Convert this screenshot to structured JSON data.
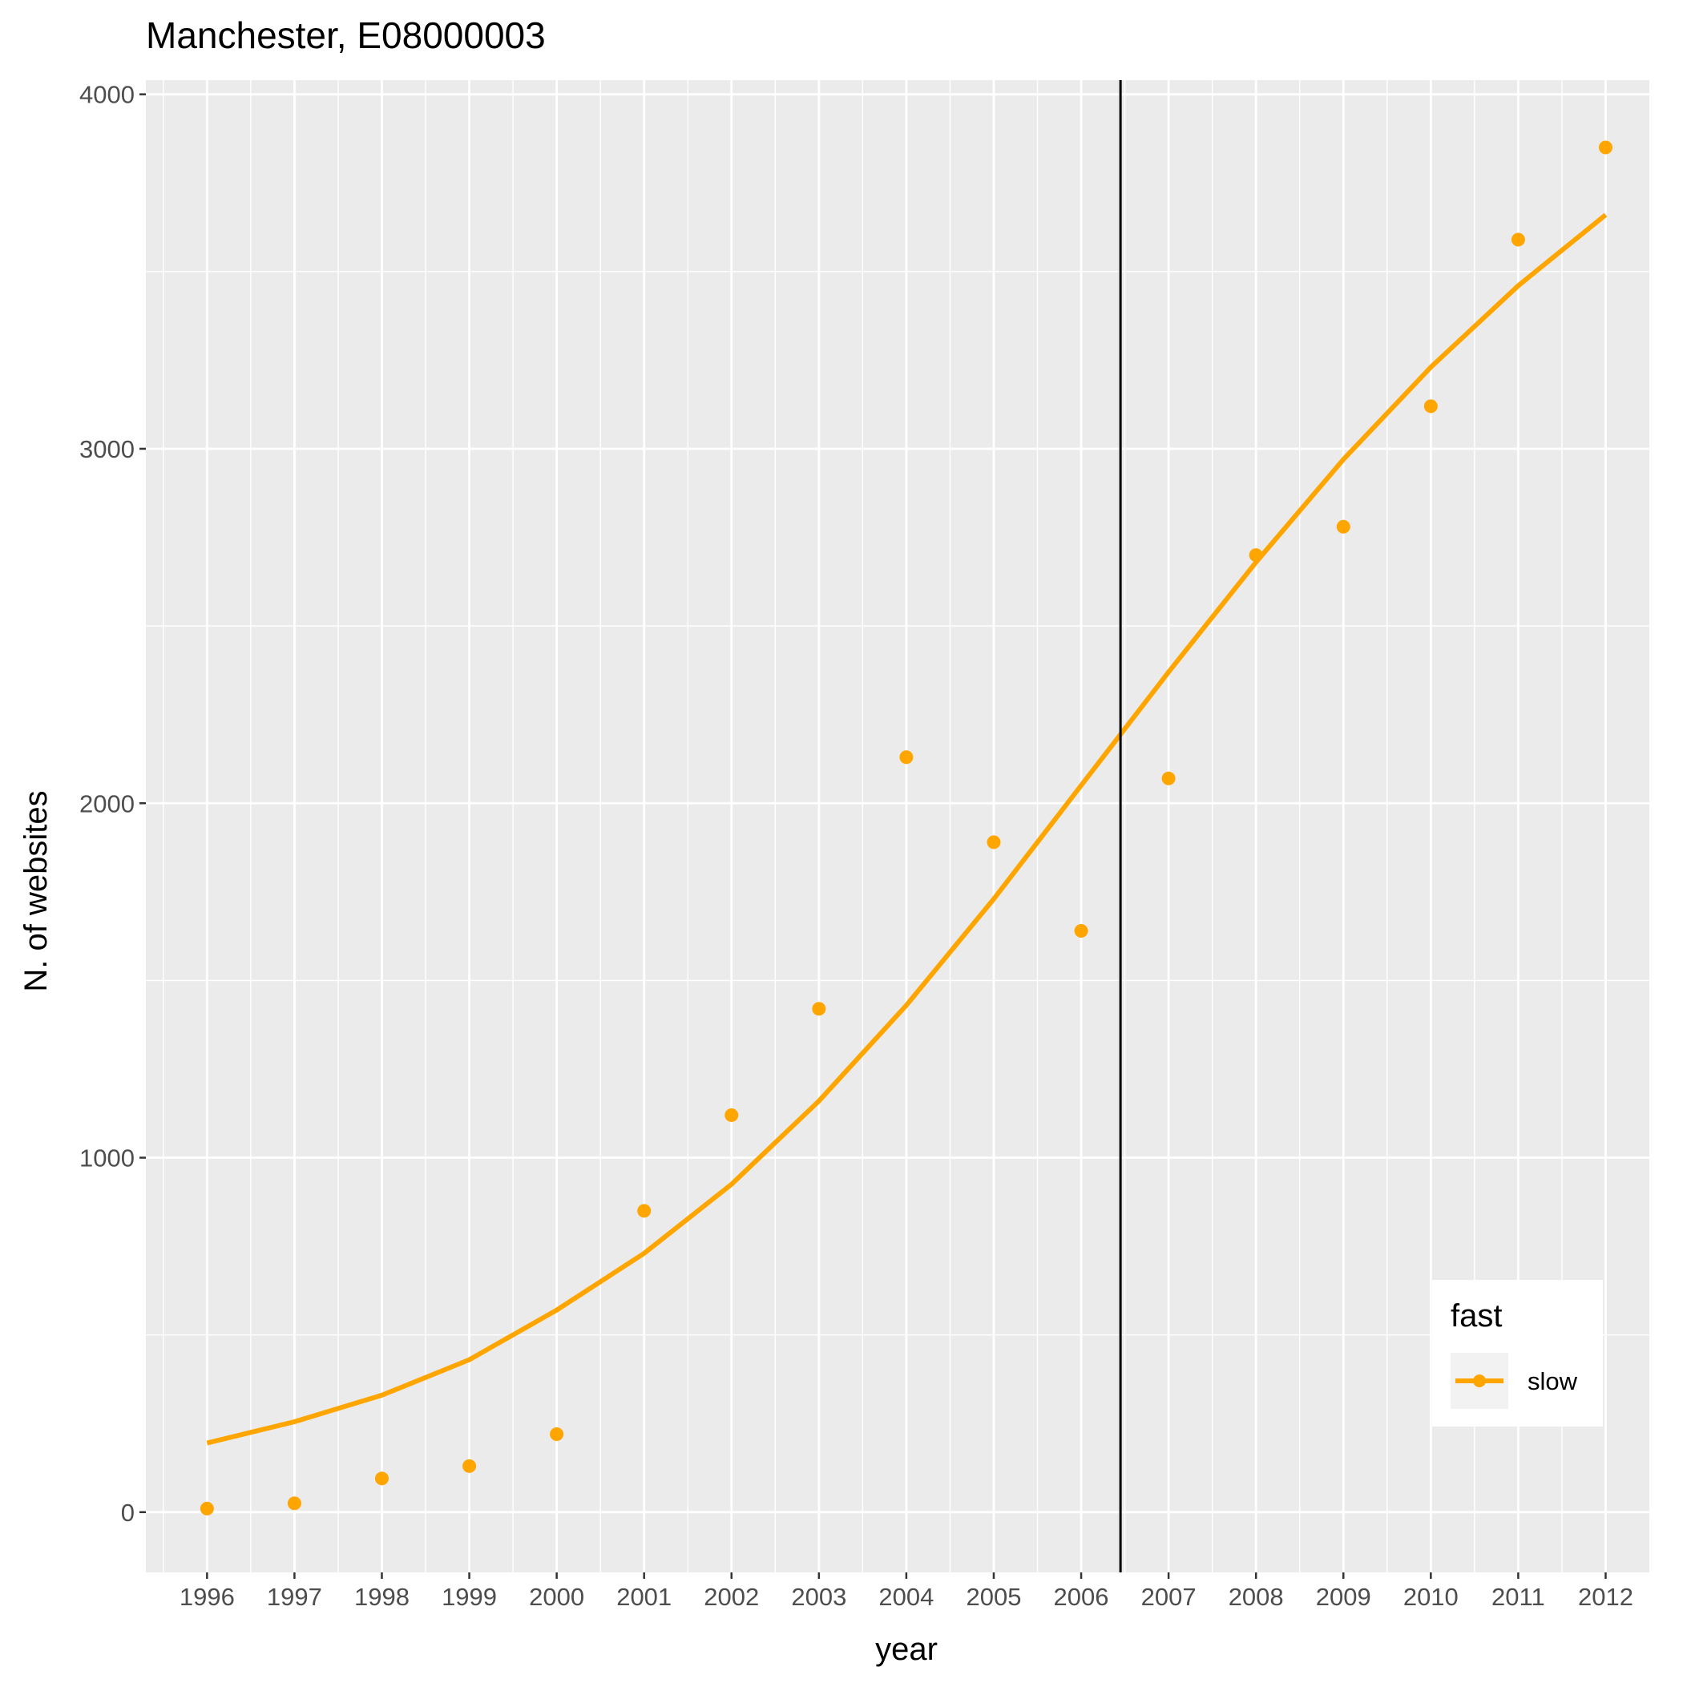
{
  "chart_data": {
    "type": "scatter",
    "title": "Manchester, E08000003",
    "xlabel": "year",
    "ylabel": "N. of websites",
    "x": [
      1996,
      1997,
      1998,
      1999,
      2000,
      2001,
      2002,
      2003,
      2004,
      2005,
      2006,
      2007,
      2008,
      2009,
      2010,
      2011,
      2012
    ],
    "x_tick_labels": [
      "1996",
      "1997",
      "1998",
      "1999",
      "2000",
      "2001",
      "2002",
      "2003",
      "2004",
      "2005",
      "2006",
      "2007",
      "2008",
      "2009",
      "2010",
      "2011",
      "2012"
    ],
    "y_ticks": [
      0,
      1000,
      2000,
      3000,
      4000
    ],
    "y_tick_labels": [
      "0",
      "1000",
      "2000",
      "3000",
      "4000"
    ],
    "xlim": [
      1995.3,
      2012.5
    ],
    "ylim": [
      -170,
      4040
    ],
    "grid": true,
    "vline_x": 2006.45,
    "legend": {
      "title": "fast",
      "placement": "bottom-right"
    },
    "series": [
      {
        "name": "slow",
        "color": "#FFA500",
        "points": [
          10,
          25,
          95,
          130,
          220,
          850,
          1120,
          1420,
          2130,
          1890,
          1640,
          2070,
          2700,
          2780,
          3120,
          3590,
          3850
        ],
        "trend": [
          195,
          255,
          330,
          430,
          570,
          730,
          925,
          1160,
          1430,
          1730,
          2050,
          2370,
          2680,
          2970,
          3230,
          3460,
          3660
        ]
      }
    ]
  }
}
